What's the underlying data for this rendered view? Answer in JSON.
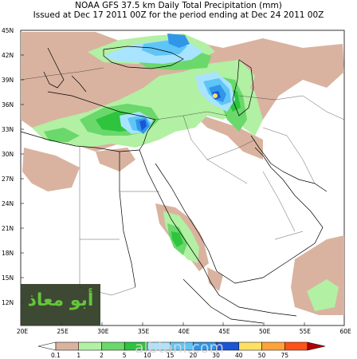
{
  "title_line1": "NOAA GFS 37.5 km Daily Total Precipitation (mm)",
  "title_line2": "Issued at Dec 17 2011 00Z for the period ending at Dec 24 2011 00Z",
  "lat_labels": [
    "45N",
    "42N",
    "39N",
    "36N",
    "33N",
    "30N",
    "27N",
    "24N",
    "21N",
    "18N",
    "15N",
    "12N"
  ],
  "lon_labels": [
    "20E",
    "25E",
    "30E",
    "35E",
    "40E",
    "45E",
    "50E",
    "55E",
    "60E"
  ],
  "colorbar": {
    "ticks": [
      "0.1",
      "1",
      "2",
      "5",
      "10",
      "15",
      "20",
      "30",
      "40",
      "50",
      "75"
    ],
    "colors": [
      "#ffffff",
      "#d9b3a0",
      "#b2f0a3",
      "#6ad86b",
      "#2ec43e",
      "#a8e4ff",
      "#5fc5f6",
      "#3096e8",
      "#1a55d6",
      "#ffe063",
      "#ffa23a",
      "#ff5218",
      "#b20000"
    ]
  },
  "logo_text": "أبو معاذ",
  "watermark": "albtani.com"
}
